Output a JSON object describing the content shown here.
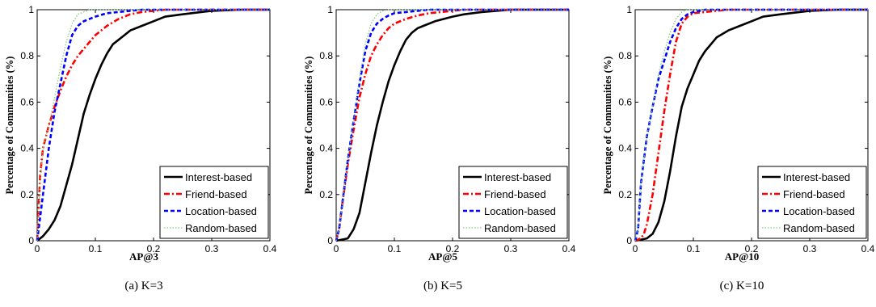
{
  "chart_data": [
    {
      "type": "line",
      "caption": "(a) K=3",
      "xlabel": "AP@3",
      "ylabel": "Percentage of Communities (%)",
      "xlim": [
        0,
        0.4
      ],
      "ylim": [
        0,
        1
      ],
      "xticks": [
        "0",
        "0.1",
        "0.2",
        "0.3",
        "0.4"
      ],
      "yticks": [
        "0",
        "0.2",
        "0.4",
        "0.6",
        "0.8",
        "1"
      ],
      "legend_position": "bottom-right",
      "series": [
        {
          "name": "Interest-based",
          "color": "#000000",
          "dash": "solid",
          "x": [
            0,
            0.01,
            0.02,
            0.03,
            0.04,
            0.05,
            0.06,
            0.07,
            0.08,
            0.09,
            0.1,
            0.11,
            0.12,
            0.13,
            0.14,
            0.15,
            0.16,
            0.18,
            0.2,
            0.22,
            0.25,
            0.3,
            0.35,
            0.4
          ],
          "y": [
            0,
            0.02,
            0.05,
            0.09,
            0.15,
            0.24,
            0.33,
            0.44,
            0.55,
            0.63,
            0.7,
            0.76,
            0.81,
            0.85,
            0.87,
            0.89,
            0.91,
            0.93,
            0.95,
            0.97,
            0.98,
            0.995,
            1,
            1
          ]
        },
        {
          "name": "Friend-based",
          "color": "#ff0000",
          "dash": "dashdot",
          "x": [
            0,
            0.005,
            0.01,
            0.02,
            0.03,
            0.04,
            0.05,
            0.06,
            0.07,
            0.08,
            0.09,
            0.1,
            0.12,
            0.14,
            0.16,
            0.18,
            0.2,
            0.22,
            0.25,
            0.4
          ],
          "y": [
            0,
            0.28,
            0.4,
            0.5,
            0.58,
            0.65,
            0.71,
            0.76,
            0.8,
            0.83,
            0.86,
            0.89,
            0.93,
            0.96,
            0.98,
            0.99,
            0.995,
            1,
            1,
            1
          ]
        },
        {
          "name": "Location-based",
          "color": "#0000ff",
          "dash": "dash",
          "x": [
            0,
            0.005,
            0.01,
            0.02,
            0.03,
            0.04,
            0.05,
            0.06,
            0.07,
            0.08,
            0.09,
            0.1,
            0.12,
            0.14,
            0.16,
            0.18,
            0.2,
            0.4
          ],
          "y": [
            0,
            0.1,
            0.2,
            0.4,
            0.56,
            0.68,
            0.8,
            0.89,
            0.93,
            0.95,
            0.96,
            0.97,
            0.985,
            0.99,
            0.995,
            1,
            1,
            1
          ]
        },
        {
          "name": "Random-based",
          "color": "#7ecf7e",
          "dash": "dot",
          "x": [
            0,
            0.005,
            0.01,
            0.02,
            0.03,
            0.04,
            0.05,
            0.06,
            0.07,
            0.08,
            0.09,
            0.1,
            0.12,
            0.14,
            0.4
          ],
          "y": [
            0,
            0.25,
            0.4,
            0.5,
            0.62,
            0.75,
            0.86,
            0.94,
            0.98,
            0.99,
            1,
            1,
            1,
            1,
            1
          ]
        }
      ]
    },
    {
      "type": "line",
      "caption": "(b) K=5",
      "xlabel": "AP@5",
      "ylabel": "Percentage of Communities (%)",
      "xlim": [
        0,
        0.4
      ],
      "ylim": [
        0,
        1
      ],
      "xticks": [
        "0",
        "0.1",
        "0.2",
        "0.3",
        "0.4"
      ],
      "yticks": [
        "0",
        "0.2",
        "0.4",
        "0.6",
        "0.8",
        "1"
      ],
      "legend_position": "bottom-right",
      "series": [
        {
          "name": "Interest-based",
          "color": "#000000",
          "dash": "solid",
          "x": [
            0,
            0.02,
            0.03,
            0.04,
            0.05,
            0.06,
            0.07,
            0.08,
            0.09,
            0.1,
            0.11,
            0.12,
            0.13,
            0.14,
            0.15,
            0.17,
            0.2,
            0.22,
            0.25,
            0.3,
            0.35,
            0.4
          ],
          "y": [
            0,
            0.01,
            0.05,
            0.12,
            0.25,
            0.38,
            0.5,
            0.6,
            0.69,
            0.76,
            0.82,
            0.87,
            0.9,
            0.92,
            0.93,
            0.95,
            0.97,
            0.98,
            0.99,
            1,
            1,
            1
          ]
        },
        {
          "name": "Friend-based",
          "color": "#ff0000",
          "dash": "dashdot",
          "x": [
            0,
            0.005,
            0.01,
            0.02,
            0.03,
            0.04,
            0.05,
            0.06,
            0.07,
            0.08,
            0.09,
            0.1,
            0.12,
            0.14,
            0.16,
            0.18,
            0.2,
            0.22,
            0.25,
            0.4
          ],
          "y": [
            0,
            0.05,
            0.15,
            0.33,
            0.48,
            0.62,
            0.72,
            0.8,
            0.85,
            0.89,
            0.92,
            0.94,
            0.96,
            0.975,
            0.985,
            0.99,
            0.995,
            1,
            1,
            1
          ]
        },
        {
          "name": "Location-based",
          "color": "#0000ff",
          "dash": "dash",
          "x": [
            0,
            0.005,
            0.01,
            0.02,
            0.03,
            0.04,
            0.05,
            0.06,
            0.07,
            0.08,
            0.09,
            0.1,
            0.12,
            0.14,
            0.16,
            0.4
          ],
          "y": [
            0,
            0.05,
            0.15,
            0.35,
            0.52,
            0.68,
            0.82,
            0.9,
            0.94,
            0.96,
            0.975,
            0.985,
            0.99,
            0.995,
            1,
            1
          ]
        },
        {
          "name": "Random-based",
          "color": "#7ecf7e",
          "dash": "dot",
          "x": [
            0,
            0.005,
            0.01,
            0.02,
            0.03,
            0.04,
            0.05,
            0.06,
            0.07,
            0.08,
            0.09,
            0.1,
            0.4
          ],
          "y": [
            0,
            0.05,
            0.15,
            0.35,
            0.52,
            0.7,
            0.85,
            0.94,
            0.98,
            0.995,
            1,
            1,
            1
          ]
        }
      ]
    },
    {
      "type": "line",
      "caption": "(c) K=10",
      "xlabel": "AP@10",
      "ylabel": "Percentage of Communities (%)",
      "xlim": [
        0,
        0.4
      ],
      "ylim": [
        0,
        1
      ],
      "xticks": [
        "0",
        "0.1",
        "0.2",
        "0.3",
        "0.4"
      ],
      "yticks": [
        "0",
        "0.2",
        "0.4",
        "0.6",
        "0.8",
        "1"
      ],
      "legend_position": "bottom-right",
      "series": [
        {
          "name": "Interest-based",
          "color": "#000000",
          "dash": "solid",
          "x": [
            0,
            0.02,
            0.03,
            0.04,
            0.05,
            0.06,
            0.07,
            0.08,
            0.09,
            0.1,
            0.11,
            0.12,
            0.13,
            0.14,
            0.16,
            0.18,
            0.2,
            0.22,
            0.25,
            0.3,
            0.35,
            0.4
          ],
          "y": [
            0,
            0.01,
            0.03,
            0.08,
            0.17,
            0.3,
            0.45,
            0.58,
            0.66,
            0.72,
            0.78,
            0.82,
            0.85,
            0.88,
            0.91,
            0.93,
            0.95,
            0.97,
            0.98,
            0.995,
            1,
            1
          ]
        },
        {
          "name": "Friend-based",
          "color": "#ff0000",
          "dash": "dashdot",
          "x": [
            0,
            0.01,
            0.015,
            0.02,
            0.03,
            0.04,
            0.05,
            0.06,
            0.07,
            0.08,
            0.09,
            0.1,
            0.12,
            0.14,
            0.16,
            0.4
          ],
          "y": [
            0,
            0.01,
            0.03,
            0.07,
            0.2,
            0.38,
            0.56,
            0.72,
            0.86,
            0.94,
            0.97,
            0.985,
            0.99,
            0.995,
            1,
            1
          ]
        },
        {
          "name": "Location-based",
          "color": "#0000ff",
          "dash": "dash",
          "x": [
            0,
            0.005,
            0.01,
            0.02,
            0.03,
            0.04,
            0.05,
            0.06,
            0.07,
            0.08,
            0.09,
            0.1,
            0.12,
            0.4
          ],
          "y": [
            0,
            0.05,
            0.25,
            0.45,
            0.58,
            0.7,
            0.78,
            0.86,
            0.92,
            0.96,
            0.98,
            0.99,
            1,
            1
          ]
        },
        {
          "name": "Random-based",
          "color": "#7ecf7e",
          "dash": "dot",
          "x": [
            0,
            0.005,
            0.01,
            0.02,
            0.03,
            0.04,
            0.05,
            0.06,
            0.07,
            0.08,
            0.09,
            0.1,
            0.4
          ],
          "y": [
            0,
            0.05,
            0.25,
            0.45,
            0.58,
            0.72,
            0.82,
            0.9,
            0.96,
            0.99,
            1,
            1,
            1
          ]
        }
      ]
    }
  ]
}
